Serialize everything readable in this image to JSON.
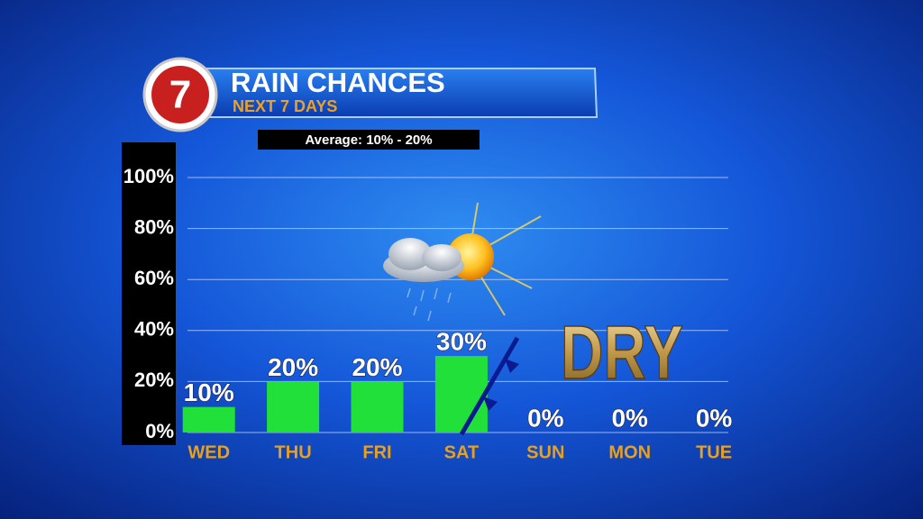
{
  "chart_data": {
    "type": "bar",
    "logo": "7",
    "title": "RAIN CHANCES",
    "subtitle": "NEXT 7 DAYS",
    "annotation": "Average: 10% - 20%",
    "dry_label": "DRY",
    "categories": [
      "WED",
      "THU",
      "FRI",
      "SAT",
      "SUN",
      "MON",
      "TUE"
    ],
    "values": [
      10,
      20,
      20,
      30,
      0,
      0,
      0
    ],
    "value_labels": [
      "10%",
      "20%",
      "20%",
      "30%",
      "0%",
      "0%",
      "0%"
    ],
    "color": "#22e03a",
    "ylim": [
      0,
      100
    ],
    "yticks": [
      {
        "value": 0,
        "label": "0%"
      },
      {
        "value": 20,
        "label": "20%"
      },
      {
        "value": 40,
        "label": "40%"
      },
      {
        "value": 60,
        "label": "60%"
      },
      {
        "value": 80,
        "label": "80%"
      },
      {
        "value": 100,
        "label": "100%"
      }
    ],
    "grid": true
  }
}
